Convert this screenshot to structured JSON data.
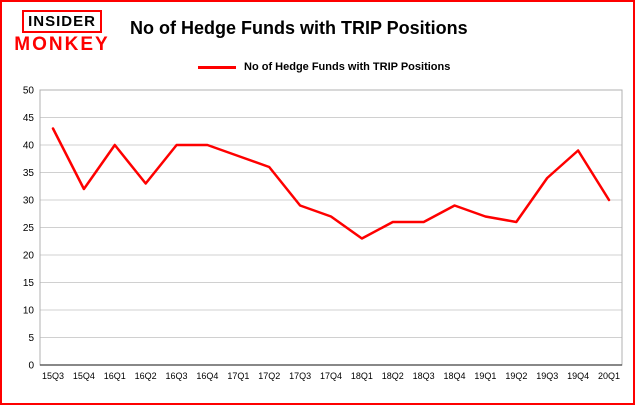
{
  "brand": {
    "line1": "INSIDER",
    "line2": "MONKEY"
  },
  "header": {
    "title": "No of Hedge Funds with TRIP Positions"
  },
  "legend": {
    "label": "No of Hedge Funds with TRIP Positions"
  },
  "colors": {
    "line": "#fe0000",
    "grid": "#d0d0d0",
    "plot_border": "#b0b0b0",
    "axis": "#404040",
    "tick_text": "#000000"
  },
  "chart_data": {
    "type": "line",
    "title": "No of Hedge Funds with TRIP Positions",
    "categories": [
      "15Q3",
      "15Q4",
      "16Q1",
      "16Q2",
      "16Q3",
      "16Q4",
      "17Q1",
      "17Q2",
      "17Q3",
      "17Q4",
      "18Q1",
      "18Q2",
      "18Q3",
      "18Q4",
      "19Q1",
      "19Q2",
      "19Q3",
      "19Q4",
      "20Q1"
    ],
    "values": [
      43,
      32,
      40,
      33,
      40,
      40,
      38,
      36,
      29,
      27,
      23,
      26,
      26,
      29,
      27,
      26,
      34,
      39,
      30
    ],
    "xlabel": "",
    "ylabel": "",
    "ylim": [
      0,
      50
    ],
    "ytick_step": 5,
    "grid": true,
    "legend_position": "top",
    "series_name": "No of Hedge Funds with TRIP Positions"
  }
}
